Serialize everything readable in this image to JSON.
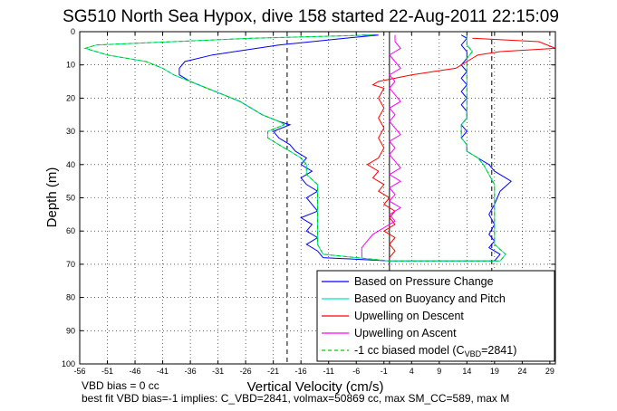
{
  "chart_data": {
    "type": "line",
    "title": "SG510 North Sea Hypox, dive 158 started 22-Aug-2011 22:15:09",
    "xlabel": "Vertical Velocity (cm/s)",
    "ylabel": "Depth (m)",
    "xlim": [
      -56,
      30
    ],
    "ylim": [
      100,
      0
    ],
    "y_reversed": true,
    "grid": true,
    "xticks": [
      -56,
      -51,
      -46,
      -41,
      -36,
      -31,
      -26,
      -21,
      -16,
      -11,
      -6,
      -1,
      4,
      9,
      14,
      19,
      24,
      29
    ],
    "yticks": [
      0,
      10,
      20,
      30,
      40,
      50,
      60,
      70,
      80,
      90,
      100
    ],
    "legend_position": "bottom-right",
    "reference_lines": [
      {
        "orientation": "vertical",
        "x": 0,
        "style": "solid",
        "color": "#000000"
      },
      {
        "orientation": "vertical",
        "x": -18.5,
        "style": "dashed",
        "color": "#000000"
      },
      {
        "orientation": "vertical",
        "x": 18.5,
        "style": "dashed",
        "color": "#000000"
      }
    ],
    "series": [
      {
        "name": "Based on Pressure Change",
        "color": "#0000ff",
        "style": "solid",
        "points": [
          [
            -5,
            1
          ],
          [
            -2,
            1
          ],
          [
            -8,
            2
          ],
          [
            -20,
            4
          ],
          [
            -32,
            7
          ],
          [
            -37,
            9
          ],
          [
            -38,
            11
          ],
          [
            -38,
            13
          ],
          [
            -36,
            15
          ],
          [
            -33,
            17
          ],
          [
            -30,
            19
          ],
          [
            -27,
            21
          ],
          [
            -25,
            23
          ],
          [
            -23,
            25
          ],
          [
            -20,
            27
          ],
          [
            -18,
            28
          ],
          [
            -21,
            30
          ],
          [
            -20,
            32
          ],
          [
            -18,
            34
          ],
          [
            -17,
            36
          ],
          [
            -15,
            38
          ],
          [
            -16,
            40
          ],
          [
            -14,
            42
          ],
          [
            -16,
            44
          ],
          [
            -15,
            46
          ],
          [
            -13,
            48
          ],
          [
            -15,
            50
          ],
          [
            -14,
            52
          ],
          [
            -13,
            54
          ],
          [
            -16,
            56
          ],
          [
            -14,
            58
          ],
          [
            -15,
            60
          ],
          [
            -13,
            62
          ],
          [
            -15,
            64
          ],
          [
            -13,
            66
          ],
          [
            -12,
            68
          ],
          [
            0,
            69
          ],
          [
            6,
            69
          ],
          [
            19,
            69
          ],
          [
            20,
            67
          ],
          [
            18,
            65
          ],
          [
            19,
            63
          ],
          [
            18,
            61
          ],
          [
            19,
            58
          ],
          [
            18,
            55
          ],
          [
            19,
            52
          ],
          [
            20,
            48
          ],
          [
            22,
            45
          ],
          [
            19,
            42
          ],
          [
            18,
            40
          ],
          [
            16,
            38
          ],
          [
            14,
            36
          ],
          [
            14,
            34
          ],
          [
            13,
            32
          ],
          [
            14,
            30
          ],
          [
            13,
            28
          ],
          [
            14,
            26
          ],
          [
            14,
            24
          ],
          [
            13,
            22
          ],
          [
            14,
            20
          ],
          [
            13,
            18
          ],
          [
            14,
            16
          ],
          [
            13,
            14
          ],
          [
            14,
            12
          ],
          [
            13,
            10
          ],
          [
            14,
            8
          ],
          [
            14,
            6
          ],
          [
            13,
            4
          ],
          [
            14,
            2
          ],
          [
            13,
            1
          ]
        ]
      },
      {
        "name": "Based on Buoyancy and Pitch",
        "color": "#00e5c0",
        "style": "solid",
        "points": [
          [
            -3,
            1
          ],
          [
            -25,
            2
          ],
          [
            -53,
            4
          ],
          [
            -55,
            5
          ],
          [
            -51,
            7
          ],
          [
            -44,
            9
          ],
          [
            -41,
            11
          ],
          [
            -39,
            13
          ],
          [
            -36,
            15
          ],
          [
            -33,
            17
          ],
          [
            -30,
            19
          ],
          [
            -27,
            21
          ],
          [
            -25,
            23
          ],
          [
            -23,
            25
          ],
          [
            -20,
            27
          ],
          [
            -19,
            28
          ],
          [
            -22,
            30
          ],
          [
            -22,
            32
          ],
          [
            -20,
            34
          ],
          [
            -18,
            36
          ],
          [
            -16,
            38
          ],
          [
            -15,
            40
          ],
          [
            -15,
            43
          ],
          [
            -13,
            46
          ],
          [
            -13,
            50
          ],
          [
            -13,
            55
          ],
          [
            -13,
            60
          ],
          [
            -13,
            64
          ],
          [
            -12,
            67
          ],
          [
            0,
            69
          ],
          [
            8,
            69
          ],
          [
            20,
            69
          ],
          [
            21,
            67
          ],
          [
            19,
            64
          ],
          [
            19,
            60
          ],
          [
            19,
            55
          ],
          [
            19,
            50
          ],
          [
            19,
            46
          ],
          [
            18,
            43
          ],
          [
            17,
            40
          ],
          [
            16,
            38
          ],
          [
            14,
            36
          ],
          [
            14,
            34
          ],
          [
            13,
            32
          ],
          [
            13,
            30
          ],
          [
            13,
            28
          ],
          [
            14,
            26
          ],
          [
            14,
            24
          ],
          [
            14,
            22
          ],
          [
            14,
            20
          ],
          [
            14,
            18
          ],
          [
            14,
            16
          ],
          [
            14,
            14
          ],
          [
            14,
            12
          ],
          [
            14,
            10
          ],
          [
            14,
            8
          ],
          [
            15,
            6
          ],
          [
            14,
            4
          ],
          [
            14,
            2
          ],
          [
            14,
            1
          ]
        ]
      },
      {
        "name": "Upwelling on Descent",
        "color": "#ff0000",
        "style": "solid",
        "points": [
          [
            15,
            2
          ],
          [
            27,
            3
          ],
          [
            30,
            5
          ],
          [
            20,
            6
          ],
          [
            16,
            7
          ],
          [
            14,
            9
          ],
          [
            12,
            11
          ],
          [
            8,
            12
          ],
          [
            4,
            13
          ],
          [
            -2,
            15
          ],
          [
            -3,
            16
          ],
          [
            -1,
            17
          ],
          [
            -2,
            20
          ],
          [
            -1,
            23
          ],
          [
            -2,
            26
          ],
          [
            -1,
            29
          ],
          [
            -2,
            32
          ],
          [
            -1,
            35
          ],
          [
            -2,
            38
          ],
          [
            -4,
            40
          ],
          [
            -2,
            42
          ],
          [
            -3,
            44
          ],
          [
            -1,
            46
          ],
          [
            -2,
            48
          ],
          [
            0,
            50
          ],
          [
            -1,
            52
          ],
          [
            1,
            54
          ],
          [
            0,
            56
          ],
          [
            1,
            58
          ],
          [
            -1,
            60
          ],
          [
            1,
            62
          ],
          [
            0,
            64
          ],
          [
            1,
            66
          ],
          [
            0,
            68
          ]
        ]
      },
      {
        "name": "Upwelling on Ascent",
        "color": "#ff00ff",
        "style": "solid",
        "points": [
          [
            -5,
            68
          ],
          [
            -5,
            65
          ],
          [
            -4,
            63
          ],
          [
            -3,
            61
          ],
          [
            -1,
            59
          ],
          [
            1,
            57
          ],
          [
            0,
            55
          ],
          [
            2,
            53
          ],
          [
            0,
            51
          ],
          [
            1,
            49
          ],
          [
            0,
            47
          ],
          [
            2,
            45
          ],
          [
            0,
            43
          ],
          [
            2,
            41
          ],
          [
            1,
            39
          ],
          [
            0,
            37
          ],
          [
            1,
            35
          ],
          [
            0,
            33
          ],
          [
            2,
            31
          ],
          [
            1,
            29
          ],
          [
            0,
            27
          ],
          [
            1,
            25
          ],
          [
            0,
            23
          ],
          [
            2,
            21
          ],
          [
            1,
            19
          ],
          [
            0,
            17
          ],
          [
            1,
            15
          ],
          [
            0,
            13
          ],
          [
            2,
            11
          ],
          [
            1,
            9
          ],
          [
            0,
            7
          ],
          [
            2,
            5
          ],
          [
            1,
            3
          ],
          [
            1,
            1
          ]
        ]
      },
      {
        "name": "-1 cc biased model (C_VBD=2841)",
        "color": "#00cc00",
        "style": "dashed",
        "points": [
          [
            -3,
            1
          ],
          [
            -25,
            2
          ],
          [
            -53,
            4
          ],
          [
            -55,
            5
          ],
          [
            -51,
            7
          ],
          [
            -44,
            9
          ],
          [
            -41,
            11
          ],
          [
            -39,
            13
          ],
          [
            -36,
            15
          ],
          [
            -33,
            17
          ],
          [
            -30,
            19
          ],
          [
            -27,
            21
          ],
          [
            -25,
            23
          ],
          [
            -23,
            25
          ],
          [
            -20,
            27
          ],
          [
            -19,
            28
          ],
          [
            -22,
            30
          ],
          [
            -22,
            32
          ],
          [
            -20,
            34
          ],
          [
            -18,
            36
          ],
          [
            -16,
            38
          ],
          [
            -15,
            40
          ],
          [
            -15,
            43
          ],
          [
            -13,
            46
          ],
          [
            -13,
            50
          ],
          [
            -13,
            55
          ],
          [
            -13,
            60
          ],
          [
            -13,
            64
          ],
          [
            -12,
            67
          ],
          [
            0,
            69
          ],
          [
            8,
            69
          ],
          [
            20,
            69
          ],
          [
            21,
            67
          ],
          [
            19,
            64
          ],
          [
            19,
            60
          ],
          [
            19,
            55
          ],
          [
            19,
            50
          ],
          [
            19,
            46
          ],
          [
            18,
            43
          ],
          [
            17,
            40
          ],
          [
            16,
            38
          ],
          [
            14,
            36
          ],
          [
            14,
            34
          ],
          [
            13,
            32
          ],
          [
            13,
            30
          ],
          [
            13,
            28
          ],
          [
            14,
            26
          ],
          [
            14,
            24
          ],
          [
            14,
            22
          ],
          [
            14,
            20
          ],
          [
            14,
            18
          ],
          [
            14,
            16
          ],
          [
            14,
            14
          ],
          [
            14,
            12
          ],
          [
            14,
            10
          ],
          [
            14,
            8
          ],
          [
            15,
            6
          ],
          [
            14,
            4
          ],
          [
            14,
            2
          ],
          [
            14,
            1
          ]
        ]
      }
    ],
    "legend": {
      "entries": [
        {
          "label": "Based on Pressure Change",
          "color": "#0000ff",
          "style": "solid"
        },
        {
          "label": "Based on Buoyancy and Pitch",
          "color": "#00e5c0",
          "style": "solid"
        },
        {
          "label": "Upwelling on Descent",
          "color": "#ff0000",
          "style": "solid"
        },
        {
          "label": "Upwelling on Ascent",
          "color": "#ff00ff",
          "style": "solid"
        },
        {
          "label": "-1 cc biased model (C",
          "sub": "VBD",
          "suffix": "=2841)",
          "color": "#00cc00",
          "style": "dashed"
        }
      ]
    },
    "annotations": [
      "VBD bias = 0 cc",
      "best fit VBD bias=-1 implies: C_VBD=2841, volmax=50869 cc, max SM_CC=589, max M"
    ]
  }
}
